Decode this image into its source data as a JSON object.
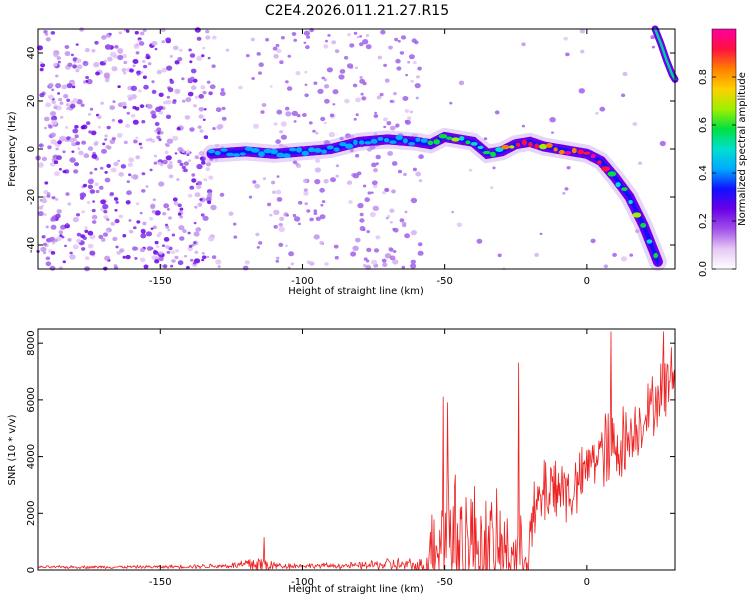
{
  "title": "C2E4.2026.011.21.27.R15",
  "chart_data": [
    {
      "type": "heatmap",
      "name": "spectrogram",
      "xlabel": "Height of straight line (km)",
      "ylabel": "Frequency (Hz)",
      "xlim": [
        -193,
        31
      ],
      "ylim": [
        -50,
        50
      ],
      "xticks": [
        -150,
        -100,
        -50,
        0
      ],
      "yticks": [
        -40,
        -20,
        0,
        20,
        40
      ],
      "colorbar": {
        "label": "Normalized spectral amplitude",
        "range": [
          0.0,
          1.0
        ],
        "ticks": [
          "0.0",
          "0.2",
          "0.4",
          "0.6",
          "0.8"
        ],
        "colors": [
          "#ffffff",
          "#e6c8f5",
          "#a050e8",
          "#6a00e8",
          "#1010ff",
          "#00aaff",
          "#00e0d0",
          "#00e040",
          "#a0f000",
          "#ffd000",
          "#ff8000",
          "#ff1040",
          "#ff00a0"
        ]
      },
      "ridge": {
        "x": [
          -132,
          -120,
          -110,
          -100,
          -90,
          -80,
          -70,
          -60,
          -55,
          -50,
          -45,
          -40,
          -35,
          -30,
          -25,
          -20,
          -15,
          -10,
          -5,
          0,
          5,
          10,
          15,
          20,
          25
        ],
        "freq": [
          -2,
          -1,
          -2,
          -1,
          0,
          3,
          4,
          3,
          2,
          5,
          4,
          3,
          -2,
          -1,
          2,
          3,
          1,
          0,
          -1,
          -2,
          -5,
          -12,
          -20,
          -32,
          -47
        ]
      },
      "upper_branch": {
        "x": [
          24,
          26,
          28,
          30,
          31
        ],
        "freq": [
          50,
          44,
          37,
          31,
          29
        ]
      }
    },
    {
      "type": "line",
      "name": "snr",
      "xlabel": "Height of straight line (km)",
      "ylabel": "SNR (10 * v/v)",
      "xlim": [
        -193,
        31
      ],
      "ylim": [
        0,
        8500
      ],
      "xticks": [
        -150,
        -100,
        -50,
        0
      ],
      "yticks": [
        0,
        2000,
        4000,
        6000,
        8000
      ],
      "color": "#ee2020",
      "envelope": {
        "x": [
          -193,
          -150,
          -125,
          -118,
          -114,
          -110,
          -100,
          -80,
          -70,
          -62,
          -57,
          -53,
          -50,
          -46,
          -42,
          -38,
          -34,
          -30,
          -26,
          -22,
          -18,
          -14,
          -10,
          -6,
          -2,
          0,
          4,
          8,
          10,
          14,
          18,
          22,
          26,
          28,
          31
        ],
        "base": [
          100,
          110,
          150,
          200,
          200,
          150,
          150,
          150,
          200,
          150,
          120,
          1200,
          1500,
          1200,
          1000,
          900,
          800,
          700,
          600,
          500,
          2000,
          3000,
          3000,
          2700,
          3100,
          3600,
          4200,
          4000,
          4400,
          4600,
          5100,
          5600,
          6300,
          6600,
          6900
        ],
        "amp": [
          60,
          70,
          120,
          400,
          500,
          180,
          100,
          150,
          300,
          320,
          350,
          2500,
          3200,
          3300,
          2600,
          2600,
          2200,
          2100,
          1600,
          1500,
          1500,
          1800,
          1700,
          1400,
          1300,
          1200,
          1400,
          2200,
          2100,
          1400,
          1300,
          1300,
          1400,
          1500,
          1200
        ]
      },
      "spikes": [
        {
          "x": -113.5,
          "y": 1150
        },
        {
          "x": -50.5,
          "y": 6100
        },
        {
          "x": -49.0,
          "y": 5900
        },
        {
          "x": -24.0,
          "y": 7300
        },
        {
          "x": 8.5,
          "y": 8400
        },
        {
          "x": 27.0,
          "y": 8400
        }
      ]
    }
  ]
}
